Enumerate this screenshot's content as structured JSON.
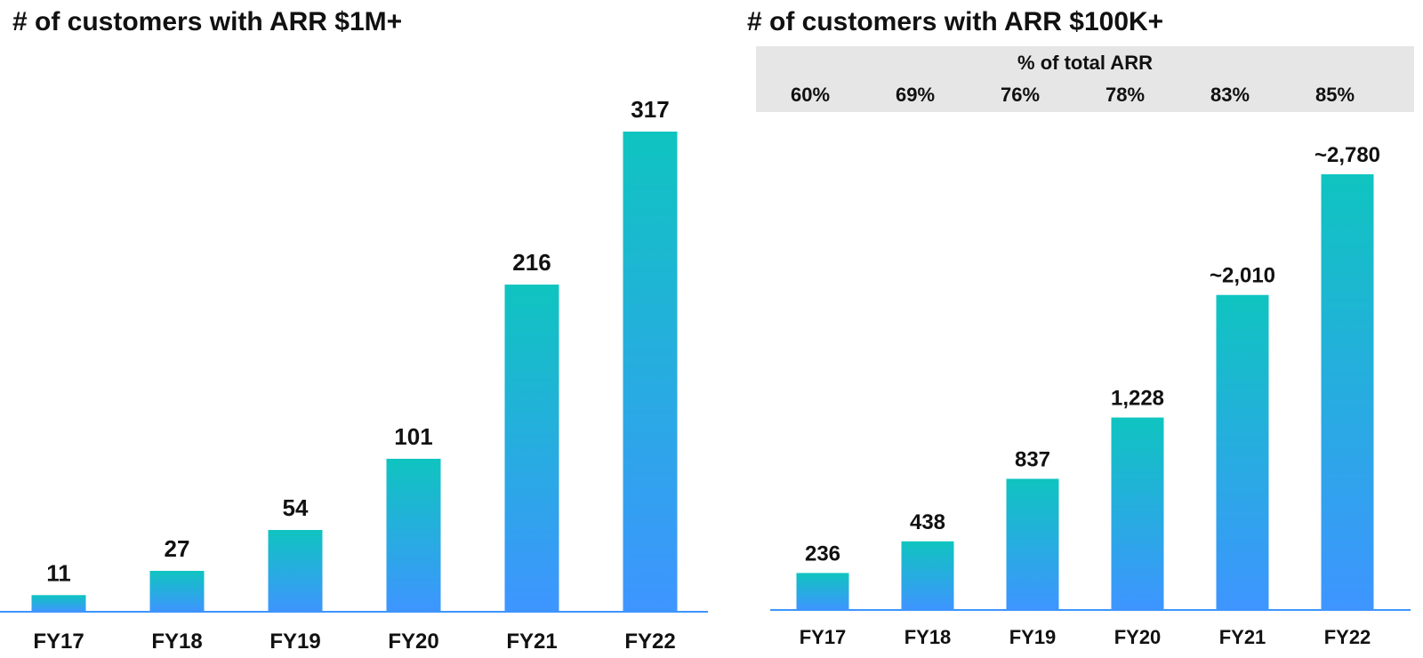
{
  "colors": {
    "bar_top": "#0fc4c0",
    "bar_bottom": "#3e95ff",
    "axis": "#3e95ff",
    "band": "#e6e6e6"
  },
  "chart_data": [
    {
      "type": "bar",
      "title": "# of customers with ARR $1M+",
      "categories": [
        "FY17",
        "FY18",
        "FY19",
        "FY20",
        "FY21",
        "FY22"
      ],
      "values": [
        11,
        27,
        54,
        101,
        216,
        317
      ],
      "labels": [
        "11",
        "27",
        "54",
        "101",
        "216",
        "317"
      ],
      "xlabel": "",
      "ylabel": "",
      "ylim": [
        0,
        317
      ],
      "grid": false
    },
    {
      "type": "bar",
      "title": "# of customers with ARR $100K+",
      "categories": [
        "FY17",
        "FY18",
        "FY19",
        "FY20",
        "FY21",
        "FY22"
      ],
      "values": [
        236,
        438,
        837,
        1228,
        2010,
        2780
      ],
      "labels": [
        "236",
        "438",
        "837",
        "1,228",
        "~2,010",
        "~2,780"
      ],
      "xlabel": "",
      "ylabel": "",
      "ylim": [
        0,
        2780
      ],
      "grid": false,
      "band": {
        "title": "% of total ARR",
        "values": [
          "60%",
          "69%",
          "76%",
          "78%",
          "83%",
          "85%"
        ]
      }
    }
  ]
}
